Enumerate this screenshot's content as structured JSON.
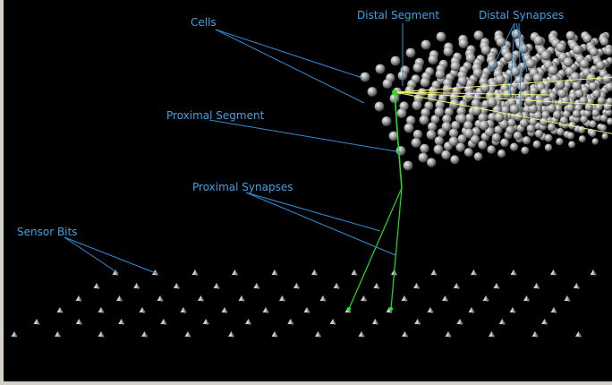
{
  "labels": {
    "cells": "Cells",
    "distal_segment": "Distal Segment",
    "distal_synapses": "Distal Synapses",
    "proximal_segment": "Proximal Segment",
    "proximal_synapses": "Proximal Synapses",
    "sensor_bits": "Sensor Bits"
  },
  "colors": {
    "background": "#000000",
    "frame": "#d4d0c8",
    "label_text": "#3fa2e6",
    "leader_line": "#2f8fd8",
    "proximal_connection": "#22dd22",
    "distal_connection": "#f2f27a",
    "cell_sphere": "#9a9a9a",
    "sensor_bit": "#bfbfbf"
  }
}
